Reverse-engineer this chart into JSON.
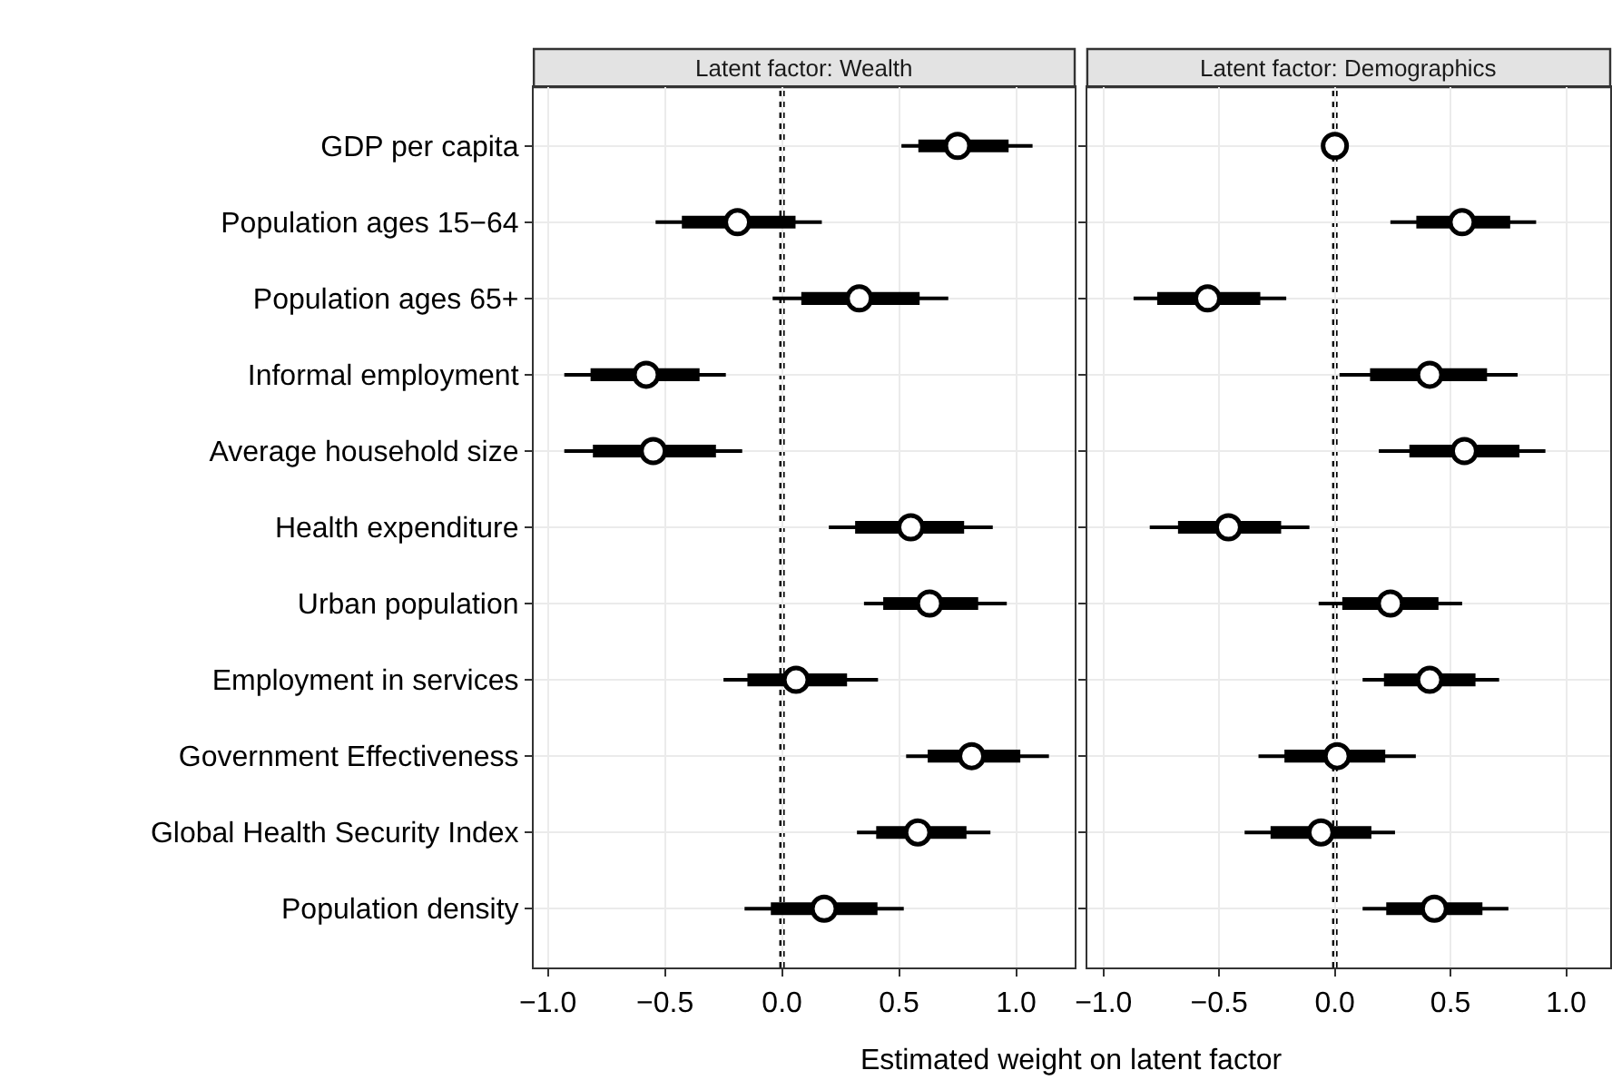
{
  "chart_data": [
    {
      "type": "box",
      "orientation": "horizontal",
      "title": "Latent factor: Wealth",
      "xlabel": "Estimated weight on latent factor",
      "categories": [
        "GDP per capita",
        "Population ages 15−64",
        "Population ages 65+",
        "Informal employment",
        "Average household size",
        "Health expenditure",
        "Urban population",
        "Employment in services",
        "Government Effectiveness",
        "Global Health Security Index",
        "Population density"
      ],
      "boxes": [
        {
          "low": 0.51,
          "q1": 0.59,
          "median": 0.75,
          "q3": 0.96,
          "high": 1.07
        },
        {
          "low": -0.54,
          "q1": -0.42,
          "median": -0.19,
          "q3": 0.05,
          "high": 0.17
        },
        {
          "low": -0.04,
          "q1": 0.09,
          "median": 0.33,
          "q3": 0.58,
          "high": 0.71
        },
        {
          "low": -0.93,
          "q1": -0.81,
          "median": -0.58,
          "q3": -0.36,
          "high": -0.24
        },
        {
          "low": -0.93,
          "q1": -0.8,
          "median": -0.55,
          "q3": -0.29,
          "high": -0.17
        },
        {
          "low": 0.2,
          "q1": 0.32,
          "median": 0.55,
          "q3": 0.77,
          "high": 0.9
        },
        {
          "low": 0.35,
          "q1": 0.44,
          "median": 0.63,
          "q3": 0.83,
          "high": 0.96
        },
        {
          "low": -0.25,
          "q1": -0.14,
          "median": 0.06,
          "q3": 0.27,
          "high": 0.41
        },
        {
          "low": 0.53,
          "q1": 0.63,
          "median": 0.81,
          "q3": 1.01,
          "high": 1.14
        },
        {
          "low": 0.32,
          "q1": 0.41,
          "median": 0.58,
          "q3": 0.78,
          "high": 0.89
        },
        {
          "low": -0.16,
          "q1": -0.04,
          "median": 0.18,
          "q3": 0.4,
          "high": 0.52
        }
      ],
      "series": [
        {
          "type": "scatter",
          "color": "#ffffff",
          "values": [
            0.75,
            -0.19,
            0.33,
            -0.58,
            -0.55,
            0.55,
            0.63,
            0.06,
            0.81,
            0.58,
            0.18
          ]
        }
      ],
      "color": "#000000",
      "marker": "circle",
      "xlim": [
        -1.06,
        1.25
      ],
      "xticks": [
        {
          "value": -1.0,
          "label": "−1.0"
        },
        {
          "value": -0.5,
          "label": "−0.5"
        },
        {
          "value": 0.0,
          "label": "0.0"
        },
        {
          "value": 0.5,
          "label": "0.5"
        },
        {
          "value": 1.0,
          "label": "1.0"
        }
      ],
      "ref_lines": [
        {
          "axis": "x",
          "value": 0,
          "line_style": "dotted",
          "color": "#000000"
        }
      ],
      "grid": true
    },
    {
      "type": "box",
      "orientation": "horizontal",
      "title": "Latent factor: Demographics",
      "boxes": [
        {
          "low": 0,
          "q1": 0,
          "median": 0,
          "q3": 0,
          "high": 0
        },
        {
          "low": 0.24,
          "q1": 0.36,
          "median": 0.55,
          "q3": 0.75,
          "high": 0.87
        },
        {
          "low": -0.87,
          "q1": -0.76,
          "median": -0.55,
          "q3": -0.33,
          "high": -0.21
        },
        {
          "low": 0.02,
          "q1": 0.16,
          "median": 0.41,
          "q3": 0.65,
          "high": 0.79
        },
        {
          "low": 0.19,
          "q1": 0.33,
          "median": 0.56,
          "q3": 0.79,
          "high": 0.91
        },
        {
          "low": -0.8,
          "q1": -0.67,
          "median": -0.46,
          "q3": -0.24,
          "high": -0.11
        },
        {
          "low": -0.07,
          "q1": 0.04,
          "median": 0.24,
          "q3": 0.44,
          "high": 0.55
        },
        {
          "low": 0.12,
          "q1": 0.22,
          "median": 0.41,
          "q3": 0.6,
          "high": 0.71
        },
        {
          "low": -0.33,
          "q1": -0.21,
          "median": 0.01,
          "q3": 0.21,
          "high": 0.35
        },
        {
          "low": -0.39,
          "q1": -0.27,
          "median": -0.06,
          "q3": 0.15,
          "high": 0.26
        },
        {
          "low": 0.12,
          "q1": 0.23,
          "median": 0.43,
          "q3": 0.63,
          "high": 0.75
        }
      ],
      "series": [
        {
          "type": "scatter",
          "color": "#ffffff",
          "values": [
            0,
            0.55,
            -0.55,
            0.41,
            0.56,
            -0.46,
            0.24,
            0.41,
            0.01,
            -0.06,
            0.43
          ]
        }
      ],
      "color": "#000000",
      "marker": "circle",
      "xlim": [
        -1.07,
        1.19
      ],
      "xticks": [
        {
          "value": -1.0,
          "label": "−1.0"
        },
        {
          "value": -0.5,
          "label": "−0.5"
        },
        {
          "value": 0.0,
          "label": "0.0"
        },
        {
          "value": 0.5,
          "label": "0.5"
        },
        {
          "value": 1.0,
          "label": "1.0"
        }
      ],
      "ref_lines": [
        {
          "axis": "x",
          "value": 0,
          "line_style": "dotted",
          "color": "#000000"
        }
      ],
      "grid": true,
      "tick_labels": "x"
    }
  ]
}
